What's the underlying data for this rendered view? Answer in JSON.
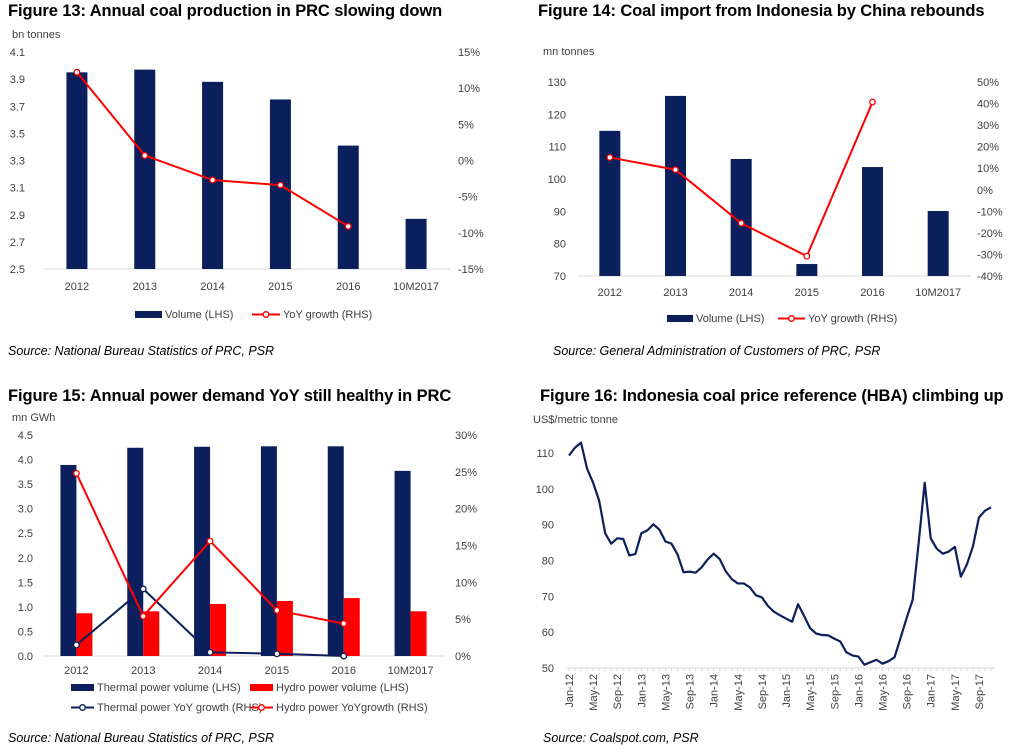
{
  "chart_data": [
    {
      "type": "bar+line",
      "title": "Figure 13: Annual coal production in PRC slowing down",
      "source": "Source:  National Bureau Statistics of PRC, PSR",
      "ylabel": "bn tonnes",
      "categories": [
        "2012",
        "2013",
        "2014",
        "2015",
        "2016",
        "10M2017"
      ],
      "ylim": [
        2.5,
        4.1
      ],
      "yticks": [
        "2.5",
        "2.7",
        "2.9",
        "3.1",
        "3.3",
        "3.5",
        "3.7",
        "3.9",
        "4.1"
      ],
      "y2lim": [
        -15,
        15
      ],
      "y2ticks": [
        "-15%",
        "-10%",
        "-5%",
        "0%",
        "5%",
        "10%",
        "15%"
      ],
      "series": [
        {
          "name": "Volume (LHS)",
          "type": "bar",
          "axis": "left",
          "color": "#0b1f5c",
          "values": [
            3.95,
            3.97,
            3.88,
            3.75,
            3.41,
            2.87
          ]
        },
        {
          "name": "YoY growth (RHS)",
          "type": "line",
          "axis": "right",
          "color": "#ff0000",
          "values": [
            12.2,
            0.7,
            -2.7,
            -3.4,
            -9.1,
            null
          ]
        }
      ],
      "legend": "bottom",
      "grid": false
    },
    {
      "type": "bar+line",
      "title": "Figure 14: Coal import from Indonesia by China rebounds",
      "source": "Source: General Administration of Customers of PRC, PSR",
      "ylabel": "mn tonnes",
      "categories": [
        "2012",
        "2013",
        "2014",
        "2015",
        "2016",
        "10M2017"
      ],
      "ylim": [
        70,
        130
      ],
      "yticks": [
        "70",
        "80",
        "90",
        "100",
        "110",
        "120",
        "130"
      ],
      "y2lim": [
        -40,
        50
      ],
      "y2ticks": [
        "-40%",
        "-30%",
        "-20%",
        "-10%",
        "0%",
        "10%",
        "20%",
        "30%",
        "40%",
        "50%"
      ],
      "series": [
        {
          "name": "Volume (LHS)",
          "type": "bar",
          "axis": "left",
          "color": "#0b1f5c",
          "values": [
            114.9,
            125.7,
            106.2,
            73.7,
            103.7,
            90.1
          ]
        },
        {
          "name": "YoY growth (RHS)",
          "type": "line",
          "axis": "right",
          "color": "#ff0000",
          "values": [
            15.0,
            9.3,
            -15.5,
            -30.8,
            40.7,
            null
          ]
        }
      ],
      "legend": "bottom",
      "grid": false
    },
    {
      "type": "bar+line",
      "title": "Figure 15: Annual power demand YoY still healthy in PRC",
      "source": "Source:  National Bureau Statistics of PRC, PSR",
      "ylabel": "mn GWh",
      "categories": [
        "2012",
        "2013",
        "2014",
        "2015",
        "2016",
        "10M2017"
      ],
      "ylim": [
        0,
        4.5
      ],
      "yticks": [
        "0.0",
        "0.5",
        "1.0",
        "1.5",
        "2.0",
        "2.5",
        "3.0",
        "3.5",
        "4.0",
        "4.5"
      ],
      "y2lim": [
        0,
        30
      ],
      "y2ticks": [
        "0%",
        "5%",
        "10%",
        "15%",
        "20%",
        "25%",
        "30%"
      ],
      "series": [
        {
          "name": "Thermal power volume (LHS)",
          "type": "bar",
          "axis": "left",
          "color": "#0b1f5c",
          "values": [
            3.89,
            4.24,
            4.26,
            4.27,
            4.27,
            3.77
          ]
        },
        {
          "name": "Hydro power volume (LHS)",
          "type": "bar",
          "axis": "left",
          "color": "#ff0000",
          "values": [
            0.87,
            0.91,
            1.06,
            1.12,
            1.18,
            0.91
          ]
        },
        {
          "name": "Thermal power YoY growth (RHS)",
          "type": "line",
          "axis": "right",
          "color": "#0b1f5c",
          "values": [
            1.5,
            9.1,
            0.5,
            0.3,
            0.0,
            null
          ]
        },
        {
          "name": "Hydro power YoYgrowth (RHS)",
          "type": "line",
          "axis": "right",
          "color": "#ff0000",
          "values": [
            24.8,
            5.4,
            15.6,
            6.2,
            4.4,
            null
          ]
        }
      ],
      "legend": "bottom",
      "grid": false
    },
    {
      "type": "line",
      "title": "Figure 16: Indonesia coal price reference (HBA) climbing up",
      "source": "Source: Coalspot.com, PSR",
      "ylabel": "US$/metric tonne",
      "x_start": "Jan-12",
      "x_end": "Nov-17",
      "x_frequency": "monthly",
      "xticks": [
        "Jan-12",
        "May-12",
        "Sep-12",
        "Jan-13",
        "May-13",
        "Sep-13",
        "Jan-14",
        "May-14",
        "Sep-14",
        "Jan-15",
        "May-15",
        "Sep-15",
        "Jan-16",
        "May-16",
        "Sep-16",
        "Jan-17",
        "May-17",
        "Sep-17"
      ],
      "ylim": [
        50,
        110
      ],
      "yticks": [
        "50",
        "60",
        "70",
        "80",
        "90",
        "100",
        "110"
      ],
      "series": [
        {
          "color": "#0b1f5c",
          "values": [
            109.3,
            111.5,
            112.9,
            105.6,
            101.7,
            96.7,
            87.6,
            84.7,
            86.2,
            86.0,
            81.4,
            81.8,
            87.6,
            88.4,
            90.1,
            88.6,
            85.3,
            84.7,
            81.7,
            76.7,
            76.9,
            76.6,
            78.1,
            80.3,
            81.9,
            80.4,
            77.0,
            74.8,
            73.6,
            73.6,
            72.5,
            70.3,
            69.7,
            67.3,
            65.7,
            64.7,
            63.8,
            62.9,
            67.8,
            64.5,
            61.1,
            59.6,
            59.2,
            59.1,
            58.2,
            57.4,
            54.4,
            53.5,
            53.2,
            50.9,
            51.6,
            52.3,
            51.2,
            51.9,
            53.0,
            58.4,
            63.9,
            69.0,
            84.9,
            101.7,
            86.2,
            83.3,
            81.9,
            82.5,
            83.8,
            75.5,
            78.9,
            83.9,
            92.0,
            93.9,
            94.8
          ]
        }
      ],
      "legend": "none",
      "grid": false
    }
  ]
}
